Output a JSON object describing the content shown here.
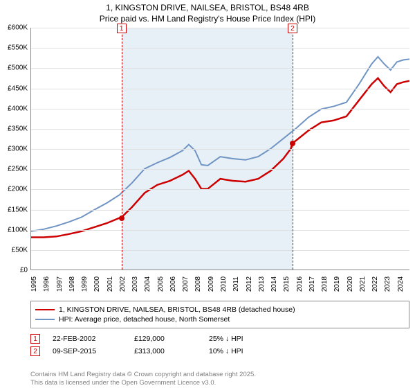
{
  "title_line1": "1, KINGSTON DRIVE, NAILSEA, BRISTOL, BS48 4RB",
  "title_line2": "Price paid vs. HM Land Registry's House Price Index (HPI)",
  "y_axis": {
    "ticks": [
      0,
      50,
      100,
      150,
      200,
      250,
      300,
      350,
      400,
      450,
      500,
      550,
      600
    ],
    "labels": [
      "£0",
      "£50K",
      "£100K",
      "£150K",
      "£200K",
      "£250K",
      "£300K",
      "£350K",
      "£400K",
      "£450K",
      "£500K",
      "£550K",
      "£600K"
    ],
    "min": 0,
    "max": 600
  },
  "x_axis": {
    "ticks": [
      1995,
      1996,
      1997,
      1998,
      1999,
      2000,
      2001,
      2002,
      2003,
      2004,
      2005,
      2006,
      2007,
      2008,
      2009,
      2010,
      2011,
      2012,
      2013,
      2014,
      2015,
      2016,
      2017,
      2018,
      2019,
      2020,
      2021,
      2022,
      2023,
      2024
    ],
    "min": 1995,
    "max": 2025
  },
  "shade_band": {
    "start": 2002.15,
    "end": 2015.69,
    "color": "#d6e3f0"
  },
  "series": {
    "red": {
      "color": "#cc0000",
      "width": 2.5,
      "label": "1, KINGSTON DRIVE, NAILSEA, BRISTOL, BS48 4RB (detached house)",
      "points": [
        [
          1995,
          80
        ],
        [
          1996,
          80
        ],
        [
          1997,
          82
        ],
        [
          1998,
          88
        ],
        [
          1999,
          95
        ],
        [
          2000,
          105
        ],
        [
          2001,
          115
        ],
        [
          2002,
          128
        ],
        [
          2002.15,
          129
        ],
        [
          2003,
          155
        ],
        [
          2004,
          190
        ],
        [
          2005,
          210
        ],
        [
          2006,
          220
        ],
        [
          2007,
          235
        ],
        [
          2007.5,
          245
        ],
        [
          2008,
          225
        ],
        [
          2008.5,
          200
        ],
        [
          2009,
          200
        ],
        [
          2010,
          225
        ],
        [
          2011,
          220
        ],
        [
          2012,
          218
        ],
        [
          2013,
          225
        ],
        [
          2014,
          245
        ],
        [
          2015,
          275
        ],
        [
          2015.6,
          300
        ],
        [
          2015.69,
          313
        ],
        [
          2016,
          320
        ],
        [
          2017,
          345
        ],
        [
          2018,
          365
        ],
        [
          2019,
          370
        ],
        [
          2020,
          380
        ],
        [
          2021,
          420
        ],
        [
          2022,
          460
        ],
        [
          2022.5,
          475
        ],
        [
          2023,
          455
        ],
        [
          2023.5,
          440
        ],
        [
          2024,
          460
        ],
        [
          2024.5,
          465
        ],
        [
          2025,
          468
        ]
      ]
    },
    "blue": {
      "color": "#6f94c3",
      "width": 2,
      "label": "HPI: Average price, detached house, North Somerset",
      "points": [
        [
          1995,
          95
        ],
        [
          1996,
          100
        ],
        [
          1997,
          108
        ],
        [
          1998,
          118
        ],
        [
          1999,
          130
        ],
        [
          2000,
          148
        ],
        [
          2001,
          165
        ],
        [
          2002,
          185
        ],
        [
          2003,
          215
        ],
        [
          2004,
          250
        ],
        [
          2005,
          265
        ],
        [
          2006,
          278
        ],
        [
          2007,
          295
        ],
        [
          2007.5,
          310
        ],
        [
          2008,
          295
        ],
        [
          2008.5,
          260
        ],
        [
          2009,
          258
        ],
        [
          2010,
          280
        ],
        [
          2011,
          275
        ],
        [
          2012,
          272
        ],
        [
          2013,
          280
        ],
        [
          2014,
          300
        ],
        [
          2015,
          325
        ],
        [
          2016,
          350
        ],
        [
          2017,
          378
        ],
        [
          2018,
          398
        ],
        [
          2019,
          405
        ],
        [
          2020,
          415
        ],
        [
          2021,
          460
        ],
        [
          2022,
          510
        ],
        [
          2022.5,
          528
        ],
        [
          2023,
          510
        ],
        [
          2023.5,
          495
        ],
        [
          2024,
          515
        ],
        [
          2024.5,
          520
        ],
        [
          2025,
          522
        ]
      ]
    }
  },
  "markers": [
    {
      "id": "1",
      "x": 2002.15,
      "y": 129,
      "dot_color": "#cc0000"
    },
    {
      "id": "2",
      "x": 2015.69,
      "y": 313,
      "dot_color": "#cc0000"
    }
  ],
  "events": [
    {
      "id": "1",
      "date": "22-FEB-2002",
      "price": "£129,000",
      "delta": "25% ↓ HPI"
    },
    {
      "id": "2",
      "date": "09-SEP-2015",
      "price": "£313,000",
      "delta": "10% ↓ HPI"
    }
  ],
  "attribution_line1": "Contains HM Land Registry data © Crown copyright and database right 2025.",
  "attribution_line2": "This data is licensed under the Open Government Licence v3.0.",
  "colors": {
    "grid": "#e0e0e0",
    "axis": "#888888",
    "marker_border": "#cc0000",
    "background": "#ffffff"
  },
  "fontsize": {
    "title": 12,
    "tick": 10,
    "legend": 10.5,
    "attribution": 9.5
  }
}
